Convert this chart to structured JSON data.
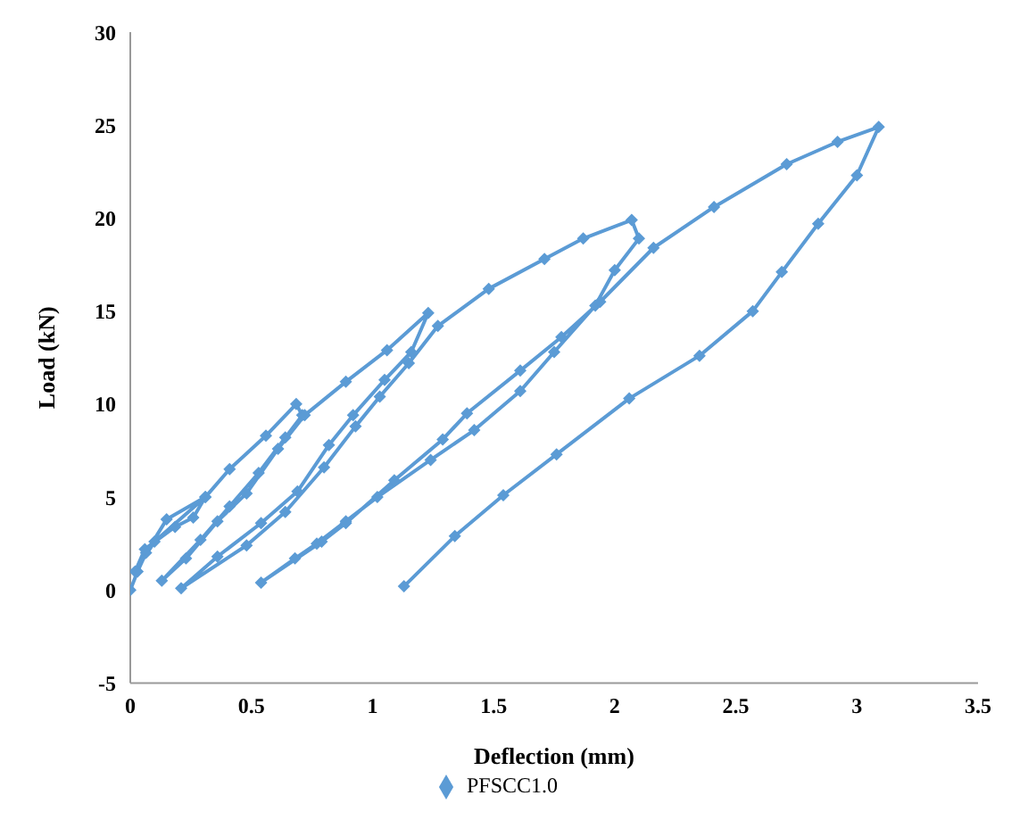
{
  "chart_data": {
    "type": "line",
    "xlabel": "Deflection (mm)",
    "ylabel": "Load (kN)",
    "xlim": [
      0,
      3.5
    ],
    "xticks": [
      0,
      0.5,
      1,
      1.5,
      2,
      2.5,
      3,
      3.5
    ],
    "ylim": [
      -5,
      30
    ],
    "yticks": [
      -5,
      0,
      5,
      10,
      15,
      20,
      25,
      30
    ],
    "grid": false,
    "legend": "bottom",
    "marker": "diamond",
    "line_style": "solid",
    "series": [
      {
        "name": "PFSCC1.0",
        "color": "#5b9bd5",
        "x": [
          0,
          0.03,
          0.065,
          0.15,
          0.31,
          0.26,
          0.185,
          0.06,
          0.02,
          0.1,
          0.31,
          0.41,
          0.56,
          0.685,
          0.71,
          0.64,
          0.53,
          0.41,
          0.29,
          0.13,
          0.23,
          0.36,
          0.48,
          0.61,
          0.72,
          0.89,
          1.06,
          1.23,
          1.16,
          1.05,
          0.92,
          0.82,
          0.69,
          0.54,
          0.36,
          0.21,
          0.48,
          0.64,
          0.8,
          0.93,
          1.03,
          1.15,
          1.27,
          1.48,
          1.71,
          1.87,
          2.07,
          2.1,
          2.0,
          1.92,
          1.75,
          1.61,
          1.42,
          1.24,
          1.02,
          0.89,
          0.77,
          0.68,
          0.54,
          0.79,
          0.89,
          1.09,
          1.29,
          1.39,
          1.61,
          1.78,
          1.94,
          2.16,
          2.41,
          2.71,
          2.92,
          3.09,
          3.0,
          2.84,
          2.69,
          2.57,
          2.35,
          2.06,
          1.76,
          1.54,
          1.34,
          1.13
        ],
        "values": [
          0,
          1,
          2,
          3.8,
          5,
          3.9,
          3.4,
          2.2,
          1,
          2.6,
          5,
          6.5,
          8.3,
          10,
          9.4,
          8.2,
          6.3,
          4.5,
          2.7,
          0.5,
          1.7,
          3.7,
          5.2,
          7.6,
          9.4,
          11.2,
          12.9,
          14.9,
          12.8,
          11.3,
          9.4,
          7.8,
          5.3,
          3.6,
          1.8,
          0.1,
          2.4,
          4.2,
          6.6,
          8.8,
          10.4,
          12.2,
          14.2,
          16.2,
          17.8,
          18.9,
          19.9,
          18.9,
          17.2,
          15.3,
          12.8,
          10.7,
          8.6,
          7,
          5,
          3.7,
          2.5,
          1.7,
          0.4,
          2.6,
          3.6,
          5.9,
          8.1,
          9.5,
          11.8,
          13.6,
          15.5,
          18.4,
          20.6,
          22.9,
          24.1,
          24.9,
          22.3,
          19.7,
          17.1,
          15,
          12.6,
          10.3,
          7.3,
          5.1,
          2.9,
          0.2
        ]
      }
    ]
  }
}
